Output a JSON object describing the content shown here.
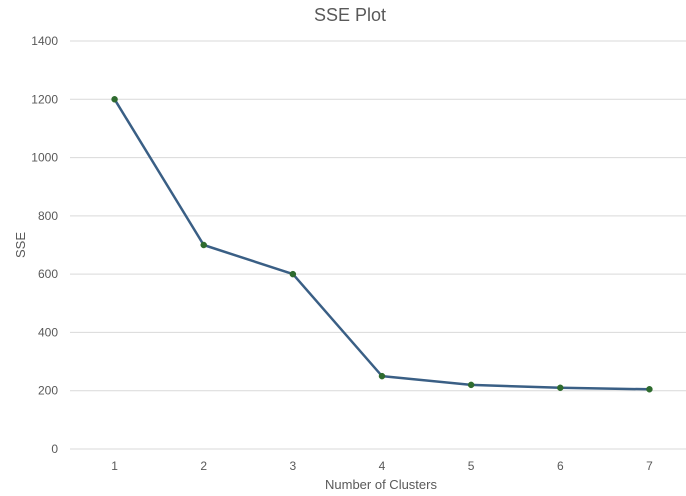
{
  "chart_data": {
    "type": "line",
    "title": "SSE Plot",
    "xlabel": "Number of Clusters",
    "ylabel": "SSE",
    "x": [
      1,
      2,
      3,
      4,
      5,
      6,
      7
    ],
    "series": [
      {
        "values": [
          1200,
          700,
          600,
          250,
          220,
          210,
          205
        ],
        "line_color": "#3A5F85",
        "marker_color": "#2E6B2E"
      }
    ],
    "ylim": [
      0,
      1400
    ],
    "yticks": [
      0,
      200,
      400,
      600,
      800,
      1000,
      1200,
      1400
    ],
    "grid": true,
    "legend": "none"
  }
}
